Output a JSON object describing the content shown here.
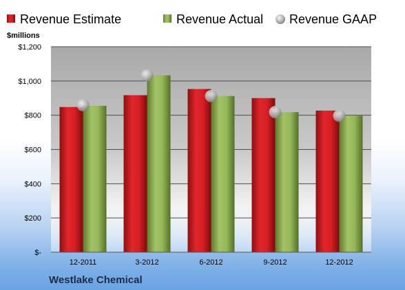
{
  "chart_data": {
    "type": "bar",
    "title": "Westlake Chemical",
    "ylabel": "$millions",
    "categories": [
      "12-2011",
      "3-2012",
      "6-2012",
      "9-2012",
      "12-2012"
    ],
    "series": [
      {
        "name": "Revenue Estimate",
        "kind": "bar",
        "color": "#c8191e",
        "values": [
          848,
          917,
          953,
          900,
          827
        ]
      },
      {
        "name": "Revenue Actual",
        "kind": "bar",
        "color": "#8aaa4f",
        "values": [
          855,
          1033,
          912,
          818,
          797
        ]
      },
      {
        "name": "Revenue GAAP",
        "kind": "marker",
        "color": "#b8b8b8",
        "values": [
          859,
          1033,
          912,
          818,
          797
        ]
      }
    ],
    "ylim": [
      0,
      1200
    ],
    "yticks": [
      0,
      200,
      400,
      600,
      800,
      1000,
      1200
    ],
    "ytick_labels": [
      "$-",
      "$200",
      "$400",
      "$600",
      "$800",
      "$1,000",
      "$1,200"
    ],
    "grid": true,
    "legend_position": "top"
  }
}
